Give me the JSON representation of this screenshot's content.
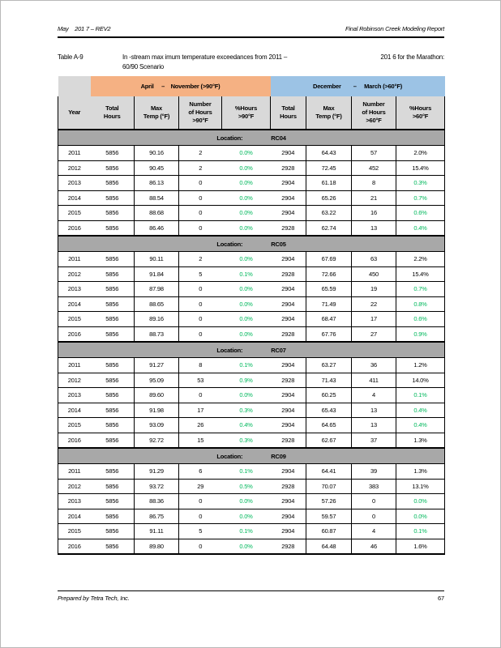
{
  "page_header": {
    "left": "May    201 7 – REV2",
    "right": "Final Robinson Creek Modeling Report"
  },
  "caption": {
    "label": "Table A-9",
    "line1_left": "In -stream max imum temperature exceedances from 2011 –",
    "line1_right": "201 6 for the Marathon:",
    "line2": "60/90 Scenario"
  },
  "table": {
    "group_headers": [
      {
        "label": "April     –    November (>90°F)"
      },
      {
        "label": "December        –     March (>60°F)"
      }
    ],
    "columns": [
      "Year",
      "Total\nHours",
      "Max\nTemp (°F)",
      "Number\nof Hours\n>90°F",
      "%Hours\n>90°F",
      "Total\nHours",
      "Max\nTemp (°F)",
      "Number\nof Hours\n>60°F",
      "%Hours\n>60°F"
    ],
    "location_label": "Location:",
    "sections": [
      {
        "location": "RC04",
        "rows": [
          {
            "values": [
              "2011",
              "5856",
              "90.16",
              "2",
              "0.0%",
              "2904",
              "64.43",
              "57",
              "2.0%"
            ],
            "green": [
              4
            ]
          },
          {
            "values": [
              "2012",
              "5856",
              "90.45",
              "2",
              "0.0%",
              "2928",
              "72.45",
              "452",
              "15.4%"
            ],
            "green": [
              4
            ]
          },
          {
            "values": [
              "2013",
              "5856",
              "86.13",
              "0",
              "0.0%",
              "2904",
              "61.18",
              "8",
              "0.3%"
            ],
            "green": [
              4,
              8
            ]
          },
          {
            "values": [
              "2014",
              "5856",
              "88.54",
              "0",
              "0.0%",
              "2904",
              "65.26",
              "21",
              "0.7%"
            ],
            "green": [
              4,
              8
            ]
          },
          {
            "values": [
              "2015",
              "5856",
              "88.68",
              "0",
              "0.0%",
              "2904",
              "63.22",
              "16",
              "0.6%"
            ],
            "green": [
              4,
              8
            ]
          },
          {
            "values": [
              "2016",
              "5856",
              "86.46",
              "0",
              "0.0%",
              "2928",
              "62.74",
              "13",
              "0.4%"
            ],
            "green": [
              4,
              8
            ]
          }
        ]
      },
      {
        "location": "RC05",
        "rows": [
          {
            "values": [
              "2011",
              "5856",
              "90.11",
              "2",
              "0.0%",
              "2904",
              "67.69",
              "63",
              "2.2%"
            ],
            "green": [
              4
            ]
          },
          {
            "values": [
              "2012",
              "5856",
              "91.84",
              "5",
              "0.1%",
              "2928",
              "72.66",
              "450",
              "15.4%"
            ],
            "green": [
              4
            ]
          },
          {
            "values": [
              "2013",
              "5856",
              "87.98",
              "0",
              "0.0%",
              "2904",
              "65.59",
              "19",
              "0.7%"
            ],
            "green": [
              4,
              8
            ]
          },
          {
            "values": [
              "2014",
              "5856",
              "88.65",
              "0",
              "0.0%",
              "2904",
              "71.49",
              "22",
              "0.8%"
            ],
            "green": [
              4,
              8
            ]
          },
          {
            "values": [
              "2015",
              "5856",
              "89.16",
              "0",
              "0.0%",
              "2904",
              "68.47",
              "17",
              "0.6%"
            ],
            "green": [
              4,
              8
            ]
          },
          {
            "values": [
              "2016",
              "5856",
              "88.73",
              "0",
              "0.0%",
              "2928",
              "67.76",
              "27",
              "0.9%"
            ],
            "green": [
              4,
              8
            ]
          }
        ]
      },
      {
        "location": "RC07",
        "rows": [
          {
            "values": [
              "2011",
              "5856",
              "91.27",
              "8",
              "0.1%",
              "2904",
              "63.27",
              "36",
              "1.2%"
            ],
            "green": [
              4
            ]
          },
          {
            "values": [
              "2012",
              "5856",
              "95.09",
              "53",
              "0.9%",
              "2928",
              "71.43",
              "411",
              "14.0%"
            ],
            "green": [
              4
            ]
          },
          {
            "values": [
              "2013",
              "5856",
              "89.60",
              "0",
              "0.0%",
              "2904",
              "60.25",
              "4",
              "0.1%"
            ],
            "green": [
              4,
              8
            ]
          },
          {
            "values": [
              "2014",
              "5856",
              "91.98",
              "17",
              "0.3%",
              "2904",
              "65.43",
              "13",
              "0.4%"
            ],
            "green": [
              4,
              8
            ]
          },
          {
            "values": [
              "2015",
              "5856",
              "93.09",
              "26",
              "0.4%",
              "2904",
              "64.65",
              "13",
              "0.4%"
            ],
            "green": [
              4,
              8
            ]
          },
          {
            "values": [
              "2016",
              "5856",
              "92.72",
              "15",
              "0.3%",
              "2928",
              "62.67",
              "37",
              "1.3%"
            ],
            "green": [
              4
            ]
          }
        ]
      },
      {
        "location": "RC09",
        "rows": [
          {
            "values": [
              "2011",
              "5856",
              "91.29",
              "6",
              "0.1%",
              "2904",
              "64.41",
              "39",
              "1.3%"
            ],
            "green": [
              4
            ]
          },
          {
            "values": [
              "2012",
              "5856",
              "93.72",
              "29",
              "0.5%",
              "2928",
              "70.07",
              "383",
              "13.1%"
            ],
            "green": [
              4
            ]
          },
          {
            "values": [
              "2013",
              "5856",
              "88.36",
              "0",
              "0.0%",
              "2904",
              "57.26",
              "0",
              "0.0%"
            ],
            "green": [
              4,
              8
            ]
          },
          {
            "values": [
              "2014",
              "5856",
              "86.75",
              "0",
              "0.0%",
              "2904",
              "59.57",
              "0",
              "0.0%"
            ],
            "green": [
              4,
              8
            ]
          },
          {
            "values": [
              "2015",
              "5856",
              "91.11",
              "5",
              "0.1%",
              "2904",
              "60.87",
              "4",
              "0.1%"
            ],
            "green": [
              4,
              8
            ]
          },
          {
            "values": [
              "2016",
              "5856",
              "89.80",
              "0",
              "0.0%",
              "2928",
              "64.48",
              "46",
              "1.6%"
            ],
            "green": [
              4
            ]
          }
        ]
      }
    ]
  },
  "page_footer": {
    "left": "Prepared by Tetra Tech, Inc.",
    "page_number": "67"
  },
  "colors": {
    "group_april_orange": "#F5B183",
    "group_december_blue": "#9CC3E5",
    "column_header_bg": "#D9D9D9",
    "location_bar_bg": "#A8A8A8",
    "highlight_green": "#00B85C"
  }
}
